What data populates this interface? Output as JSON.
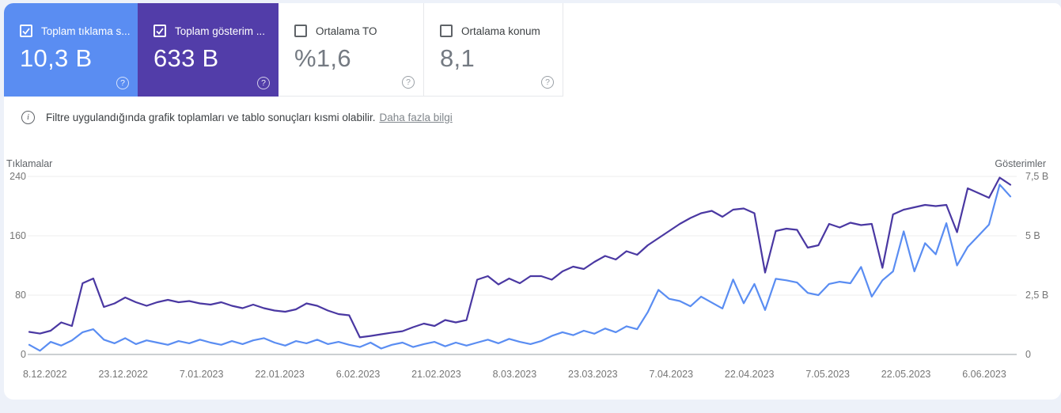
{
  "cards": [
    {
      "label": "Toplam tıklama s...",
      "value": "10,3 B",
      "checked": true,
      "color": "#5a8df2"
    },
    {
      "label": "Toplam gösterim ...",
      "value": "633 B",
      "checked": true,
      "color": "#523da9"
    },
    {
      "label": "Ortalama TO",
      "value": "%1,6",
      "checked": false,
      "color": "#ffffff"
    },
    {
      "label": "Ortalama konum",
      "value": "8,1",
      "checked": false,
      "color": "#ffffff"
    }
  ],
  "icons": {
    "help": "?",
    "info": "i"
  },
  "info": {
    "text": "Filtre uygulandığında grafik toplamları ve tablo sonuçları kısmi olabilir.",
    "link": "Daha fazla bilgi"
  },
  "chart_data": {
    "type": "line",
    "left_axis": {
      "label": "Tıklamalar",
      "ticks": [
        "0",
        "80",
        "160",
        "240"
      ],
      "max": 240
    },
    "right_axis": {
      "label": "Gösterimler",
      "ticks": [
        "0",
        "2,5 B",
        "5 B",
        "7,5 B"
      ],
      "max": 7.5
    },
    "x_labels": [
      "8.12.2022",
      "23.12.2022",
      "7.01.2023",
      "22.01.2023",
      "6.02.2023",
      "21.02.2023",
      "8.03.2023",
      "23.03.2023",
      "7.04.2023",
      "22.04.2023",
      "7.05.2023",
      "22.05.2023",
      "6.06.2023"
    ],
    "grid": true,
    "colors": {
      "gridline": "#ececec",
      "baseline": "#9aa0a6",
      "tick_text": "#757575",
      "axis_title": "#5f6368"
    },
    "series": [
      {
        "name": "Tıklamalar",
        "axis": "left",
        "color": "#5a8df2",
        "values": [
          13,
          5,
          17,
          12,
          19,
          30,
          34,
          20,
          15,
          22,
          14,
          19,
          16,
          13,
          18,
          15,
          20,
          16,
          13,
          18,
          14,
          19,
          22,
          16,
          12,
          18,
          15,
          20,
          14,
          17,
          13,
          10,
          16,
          8,
          13,
          16,
          10,
          14,
          17,
          11,
          16,
          12,
          16,
          20,
          15,
          21,
          17,
          14,
          18,
          25,
          30,
          26,
          32,
          28,
          35,
          30,
          38,
          34,
          57,
          87,
          75,
          72,
          65,
          78,
          70,
          62,
          101,
          69,
          95,
          60,
          102,
          100,
          97,
          83,
          80,
          95,
          98,
          96,
          118,
          78,
          100,
          112,
          166,
          112,
          150,
          135,
          177,
          120,
          145,
          160,
          175,
          229,
          213
        ]
      },
      {
        "name": "Gösterimler",
        "axis": "right",
        "color": "#4a38a2",
        "values": [
          0.95,
          0.88,
          1.0,
          1.35,
          1.2,
          3.0,
          3.2,
          2.0,
          2.15,
          2.4,
          2.2,
          2.05,
          2.2,
          2.3,
          2.2,
          2.25,
          2.15,
          2.1,
          2.2,
          2.05,
          1.95,
          2.1,
          1.95,
          1.85,
          1.8,
          1.9,
          2.15,
          2.05,
          1.85,
          1.7,
          1.65,
          0.72,
          0.78,
          0.85,
          0.92,
          0.98,
          1.15,
          1.3,
          1.2,
          1.45,
          1.35,
          1.45,
          3.15,
          3.3,
          2.95,
          3.2,
          3.0,
          3.3,
          3.3,
          3.15,
          3.5,
          3.7,
          3.6,
          3.9,
          4.15,
          4.0,
          4.35,
          4.2,
          4.6,
          4.9,
          5.2,
          5.5,
          5.75,
          5.95,
          6.05,
          5.8,
          6.1,
          6.15,
          5.95,
          3.45,
          5.2,
          5.3,
          5.25,
          4.5,
          4.6,
          5.5,
          5.35,
          5.55,
          5.45,
          5.5,
          3.65,
          5.9,
          6.1,
          6.2,
          6.3,
          6.25,
          6.3,
          5.15,
          7.0,
          6.8,
          6.6,
          7.45,
          7.15
        ]
      }
    ]
  }
}
